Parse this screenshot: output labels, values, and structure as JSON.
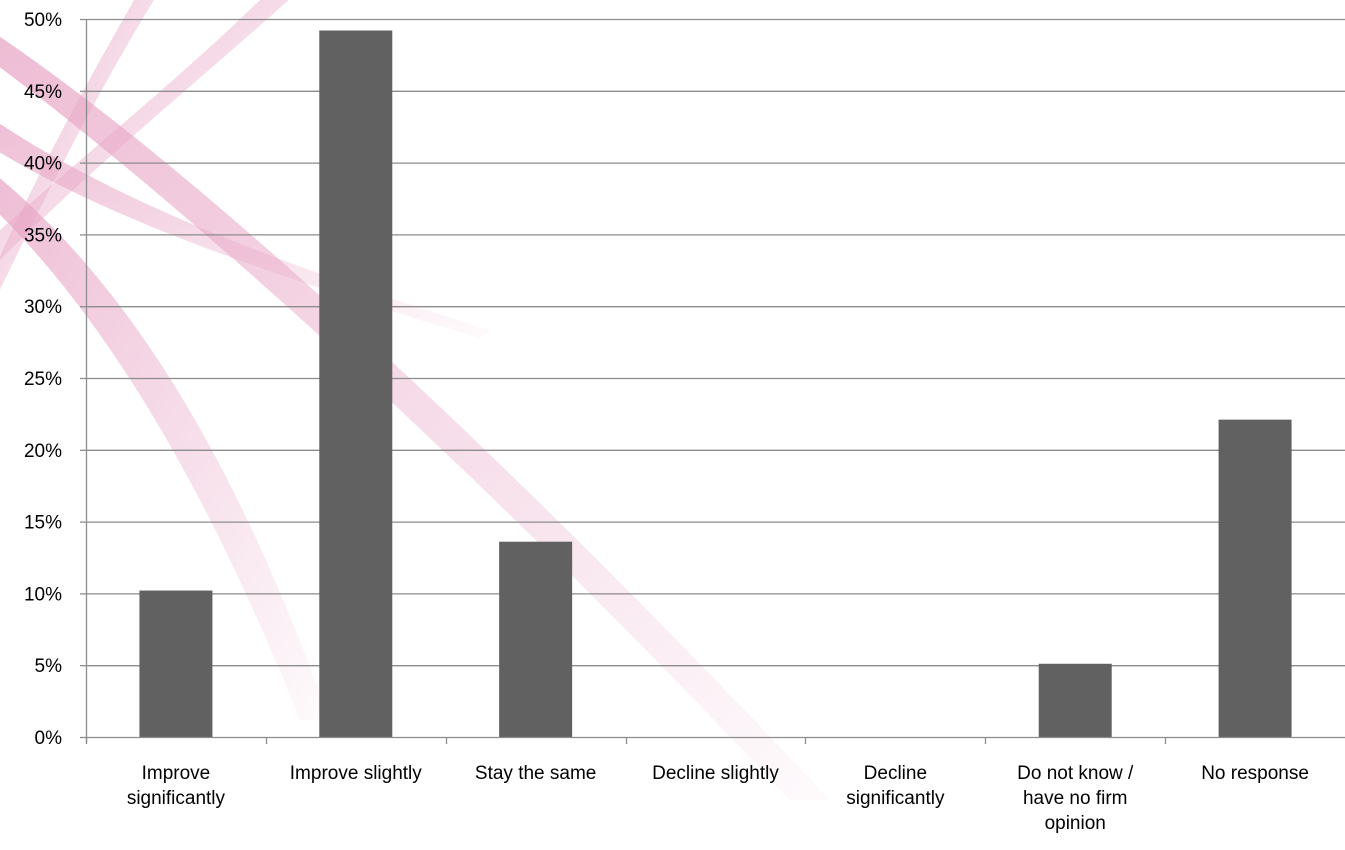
{
  "colors": {
    "bar": "#616161",
    "gridline": "#8c8c8c",
    "axis": "#8c8c8c",
    "watermark": "#e8a6c6"
  },
  "chart_data": {
    "type": "bar",
    "title": "",
    "xlabel": "",
    "ylabel": "",
    "ylim": [
      0,
      50
    ],
    "y_ticks": [
      0,
      5,
      10,
      15,
      20,
      25,
      30,
      35,
      40,
      45,
      50
    ],
    "y_tick_labels": [
      "0%",
      "5%",
      "10%",
      "15%",
      "20%",
      "25%",
      "30%",
      "35%",
      "40%",
      "45%",
      "50%"
    ],
    "grid": true,
    "legend": "none",
    "categories": [
      [
        "Improve",
        "significantly"
      ],
      [
        "Improve slightly"
      ],
      [
        "Stay the same"
      ],
      [
        "Decline slightly"
      ],
      [
        "Decline",
        "significantly"
      ],
      [
        "Do not know /",
        "have no firm",
        "opinion"
      ],
      [
        "No response"
      ]
    ],
    "values": [
      10.2,
      49.2,
      13.6,
      0,
      0,
      5.1,
      22.1
    ]
  }
}
